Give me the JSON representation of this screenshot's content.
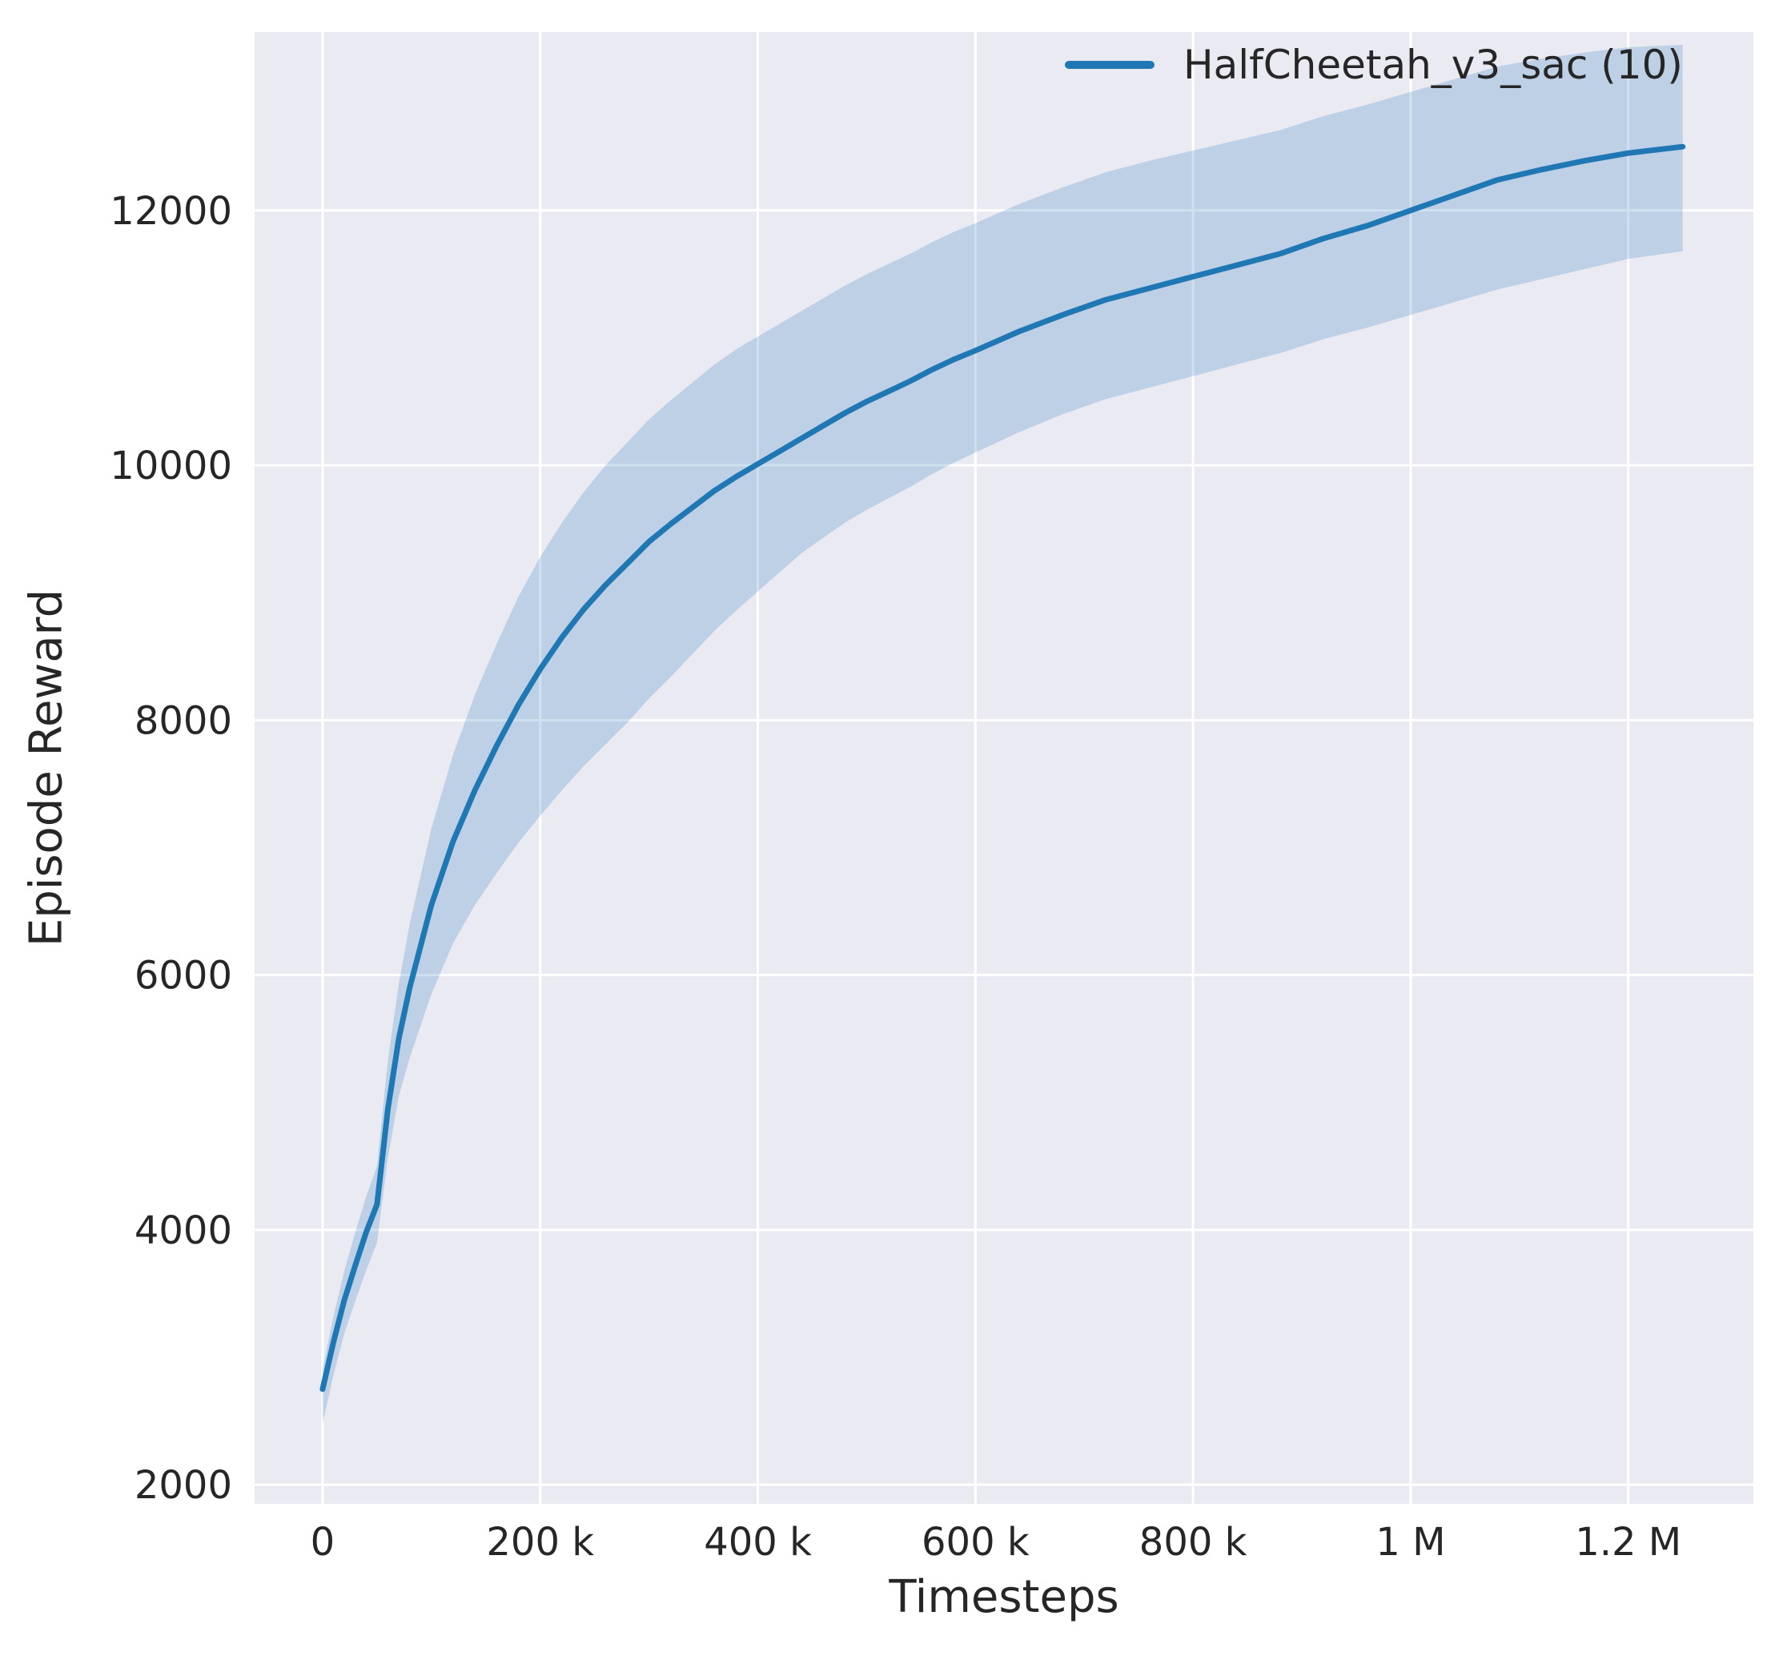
{
  "chart_data": {
    "type": "line",
    "title": "",
    "xlabel": "Timesteps",
    "ylabel": "Episode Reward",
    "legend": [
      "HalfCheetah_v3_sac (10)"
    ],
    "legend_position": "upper right",
    "grid": true,
    "background": "#eaeaf2",
    "grid_color": "#ffffff",
    "line_color": "#1f77b4",
    "band_color": "#1f77b4",
    "band_opacity": 0.22,
    "text_color": "#262626",
    "xlim": [
      -62500,
      1315000
    ],
    "ylim": [
      1850,
      13400
    ],
    "x_ticks": [
      0,
      200000,
      400000,
      600000,
      800000,
      1000000,
      1200000
    ],
    "x_tick_labels": [
      "0",
      "200 k",
      "400 k",
      "600 k",
      "800 k",
      "1 M",
      "1.2 M"
    ],
    "y_ticks": [
      2000,
      4000,
      6000,
      8000,
      10000,
      12000
    ],
    "y_tick_labels": [
      "2000",
      "4000",
      "6000",
      "8000",
      "10000",
      "12000"
    ],
    "series": [
      {
        "name": "HalfCheetah_v3_sac (10)",
        "x": [
          0,
          10000,
          20000,
          30000,
          40000,
          50000,
          60000,
          70000,
          80000,
          100000,
          120000,
          140000,
          160000,
          180000,
          200000,
          220000,
          240000,
          260000,
          280000,
          300000,
          320000,
          340000,
          360000,
          380000,
          400000,
          420000,
          440000,
          460000,
          480000,
          500000,
          520000,
          540000,
          560000,
          580000,
          600000,
          640000,
          680000,
          720000,
          760000,
          800000,
          840000,
          880000,
          920000,
          960000,
          1000000,
          1040000,
          1080000,
          1120000,
          1160000,
          1200000,
          1250000
        ],
        "mean": [
          2750,
          3120,
          3450,
          3720,
          3980,
          4200,
          4950,
          5500,
          5900,
          6550,
          7050,
          7450,
          7800,
          8120,
          8400,
          8650,
          8870,
          9060,
          9230,
          9400,
          9540,
          9670,
          9800,
          9910,
          10010,
          10110,
          10210,
          10310,
          10410,
          10500,
          10580,
          10660,
          10750,
          10830,
          10900,
          11050,
          11180,
          11300,
          11390,
          11480,
          11570,
          11660,
          11780,
          11880,
          12000,
          12120,
          12240,
          12320,
          12390,
          12450,
          12500
        ],
        "lower": [
          2480,
          2860,
          3190,
          3440,
          3680,
          3900,
          4570,
          5050,
          5350,
          5850,
          6250,
          6550,
          6800,
          7040,
          7250,
          7450,
          7640,
          7810,
          7980,
          8170,
          8340,
          8520,
          8700,
          8860,
          9010,
          9160,
          9310,
          9430,
          9550,
          9650,
          9740,
          9830,
          9930,
          10020,
          10100,
          10260,
          10400,
          10520,
          10610,
          10700,
          10790,
          10880,
          10990,
          11080,
          11180,
          11280,
          11380,
          11460,
          11540,
          11620,
          11680
        ],
        "upper": [
          2910,
          3320,
          3680,
          3980,
          4260,
          4500,
          5330,
          5930,
          6400,
          7150,
          7730,
          8200,
          8600,
          8970,
          9280,
          9550,
          9790,
          10000,
          10180,
          10360,
          10510,
          10650,
          10790,
          10910,
          11010,
          11110,
          11210,
          11310,
          11410,
          11500,
          11580,
          11660,
          11750,
          11830,
          11900,
          12050,
          12180,
          12300,
          12390,
          12470,
          12550,
          12630,
          12740,
          12830,
          12930,
          13030,
          13130,
          13190,
          13240,
          13280,
          13300
        ]
      }
    ]
  }
}
